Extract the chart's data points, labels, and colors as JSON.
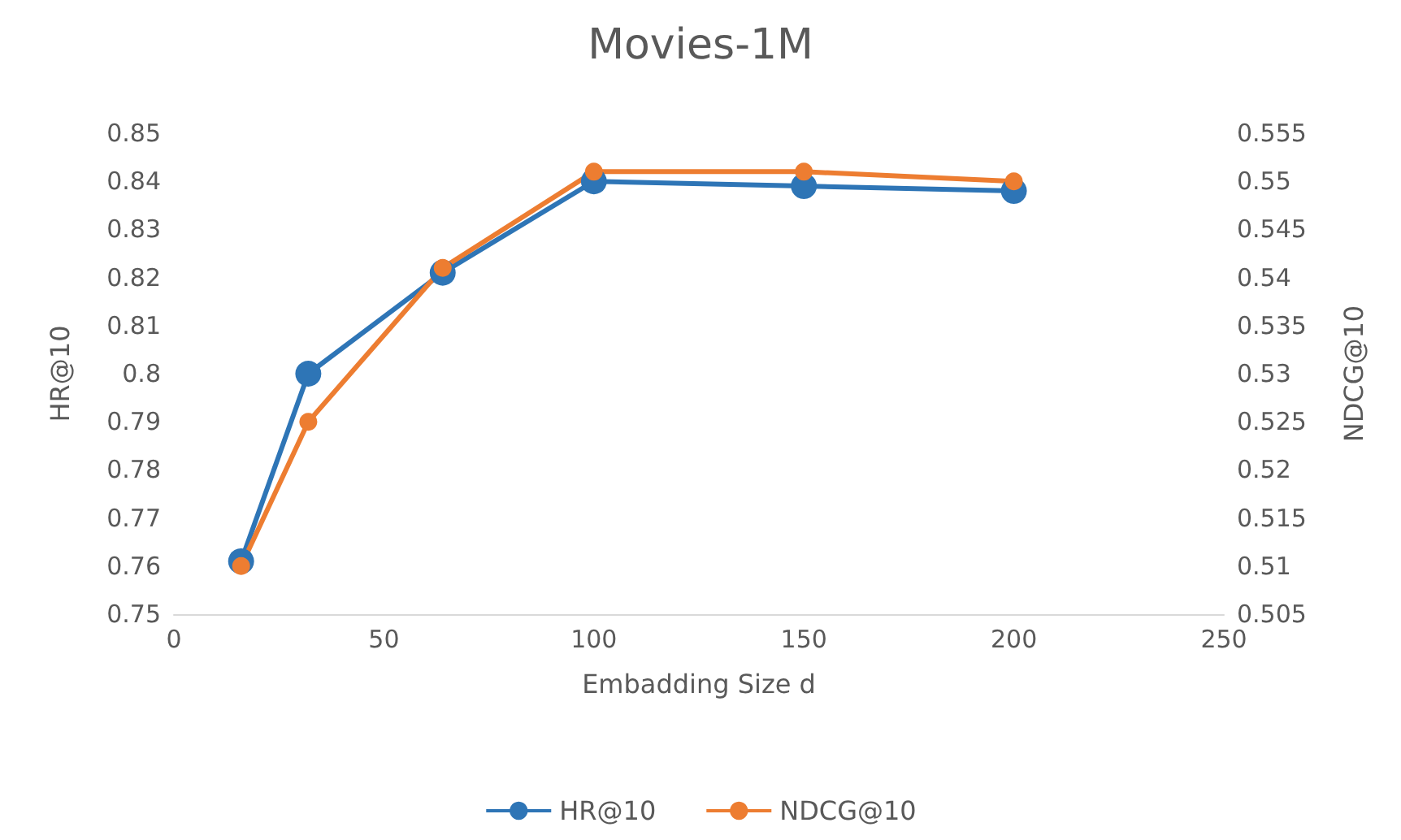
{
  "chart_data": {
    "type": "line",
    "title": "Movies-1M",
    "xlabel": "Embadding Size d",
    "ylabel": "HR@10",
    "y2label": "NDCG@10",
    "x": [
      16,
      32,
      64,
      100,
      150,
      200
    ],
    "series": [
      {
        "name": "HR@10",
        "color": "#2e75b6",
        "values": [
          0.761,
          0.8,
          0.821,
          0.84,
          0.839,
          0.838
        ]
      },
      {
        "name": "NDCG@10",
        "color": "#ed7d31",
        "axis": "y2",
        "values": [
          0.51,
          0.525,
          0.541,
          0.551,
          0.551,
          0.55
        ]
      }
    ],
    "xlim": [
      0,
      250
    ],
    "xticks": [
      0,
      50,
      100,
      150,
      200,
      250
    ],
    "ylim": [
      0.75,
      0.85
    ],
    "yticks": [
      0.75,
      0.76,
      0.77,
      0.78,
      0.79,
      0.8,
      0.81,
      0.82,
      0.83,
      0.84,
      0.85
    ],
    "y2lim": [
      0.505,
      0.555
    ],
    "y2ticks": [
      0.505,
      0.51,
      0.515,
      0.52,
      0.525,
      0.53,
      0.535,
      0.54,
      0.545,
      0.55,
      0.555
    ],
    "grid": false,
    "legend": "bottom",
    "marker": "circle",
    "line_style": "solid"
  }
}
